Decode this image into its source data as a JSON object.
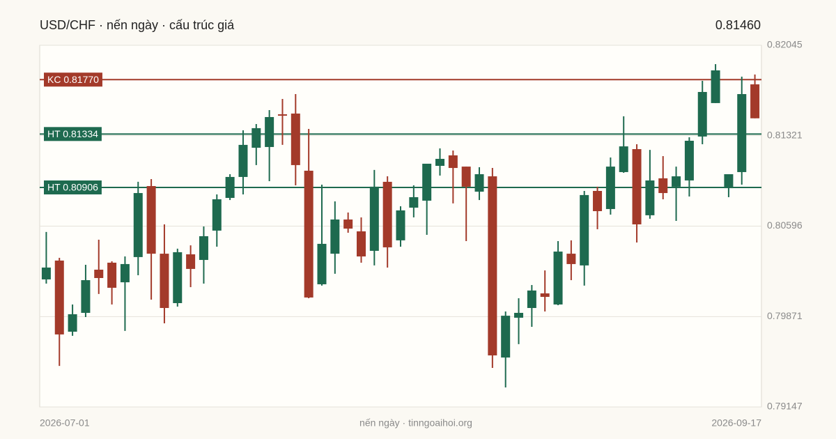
{
  "chart_data": {
    "type": "candlestick",
    "title": "USD/CHF · nến ngày · cấu trúc giá",
    "last_price": {
      "value": 0.8146,
      "label": "0.81460"
    },
    "last_price_color": "#a33a2a",
    "footer": "nến ngày · tinngoaihoi.org",
    "categories": [
      "2026-07-01",
      null,
      null,
      null,
      null,
      null,
      null,
      null,
      null,
      null,
      null,
      null,
      null,
      null,
      null,
      null,
      null,
      null,
      null,
      null,
      null,
      null,
      null,
      null,
      null,
      null,
      null,
      null,
      null,
      null,
      null,
      null,
      null,
      null,
      null,
      null,
      null,
      null,
      null,
      null,
      null,
      null,
      null,
      null,
      null,
      null,
      null,
      null,
      null,
      null,
      null,
      null,
      null,
      null,
      "2026-09-17"
    ],
    "open": [
      0.80169,
      0.8032,
      0.7975,
      0.79901,
      0.80247,
      0.80303,
      0.80146,
      0.80348,
      0.80917,
      0.80375,
      0.79979,
      0.8037,
      0.80325,
      0.8056,
      0.80822,
      0.8099,
      0.81224,
      0.8123,
      0.81492,
      0.81498,
      0.8104,
      0.8013,
      0.80375,
      0.80649,
      0.80554,
      0.80398,
      0.80951,
      0.80482,
      0.80744,
      0.808,
      0.81079,
      0.81163,
      0.81073,
      0.80872,
      0.80995,
      0.79543,
      0.79862,
      0.7994,
      0.80057,
      0.79968,
      0.80375,
      0.80281,
      0.80878,
      0.80733,
      0.81029,
      0.81213,
      0.80683,
      0.80979,
      0.80912,
      0.80962,
      0.81314,
      0.81582,
      0.809,
      0.81029,
      0.81732
    ],
    "high": [
      0.80549,
      0.80342,
      0.79968,
      0.80286,
      0.80487,
      0.80314,
      0.80353,
      0.80951,
      0.80973,
      0.8061,
      0.80415,
      0.80442,
      0.80593,
      0.8085,
      0.81012,
      0.81364,
      0.81414,
      0.81526,
      0.81615,
      0.81654,
      0.81375,
      0.80928,
      0.80794,
      0.80705,
      0.80666,
      0.81046,
      0.80995,
      0.80755,
      0.80923,
      0.81096,
      0.81219,
      0.81202,
      0.81073,
      0.81068,
      0.81062,
      0.79912,
      0.80018,
      0.80124,
      0.80241,
      0.80476,
      0.80482,
      0.80878,
      0.80912,
      0.81146,
      0.81476,
      0.81252,
      0.81207,
      0.81157,
      0.81073,
      0.81308,
      0.8176,
      0.81894,
      0.81012,
      0.81794,
      0.81811
    ],
    "low": [
      0.80135,
      0.79476,
      0.79717,
      0.79867,
      0.80052,
      0.79968,
      0.79756,
      0.80202,
      0.80007,
      0.79817,
      0.79951,
      0.80107,
      0.80135,
      0.80431,
      0.80805,
      0.8085,
      0.81085,
      0.80956,
      0.81247,
      0.80923,
      0.80018,
      0.80119,
      0.80214,
      0.80543,
      0.80303,
      0.80281,
      0.80264,
      0.80431,
      0.80666,
      0.80526,
      0.81001,
      0.80778,
      0.80476,
      0.80805,
      0.7946,
      0.79303,
      0.7965,
      0.79789,
      0.79912,
      0.79962,
      0.80163,
      0.80119,
      0.80571,
      0.80688,
      0.81023,
      0.80465,
      0.80655,
      0.80811,
      0.80638,
      0.80833,
      0.81252,
      0.81582,
      0.80828,
      0.80928,
      0.8146
    ],
    "close": [
      0.80264,
      0.79728,
      0.7989,
      0.80163,
      0.8018,
      0.80102,
      0.80292,
      0.80861,
      0.80375,
      0.7994,
      0.80387,
      0.80253,
      0.80515,
      0.80811,
      0.8099,
      0.81247,
      0.81381,
      0.8147,
      0.81481,
      0.81085,
      0.80024,
      0.80454,
      0.80649,
      0.80576,
      0.80353,
      0.80912,
      0.80426,
      0.80722,
      0.80828,
      0.81096,
      0.81135,
      0.81062,
      0.80912,
      0.81012,
      0.7956,
      0.79878,
      0.79901,
      0.8008,
      0.80029,
      0.80392,
      0.80292,
      0.80845,
      0.80716,
      0.81073,
      0.81235,
      0.8061,
      0.80962,
      0.80861,
      0.80995,
      0.8128,
      0.81671,
      0.81844,
      0.81012,
      0.81654,
      0.8146
    ],
    "up_color": "#1e6a4f",
    "down_color": "#a33a2a",
    "levels": [
      {
        "label": "KC 0.81770",
        "value": 0.8177,
        "color": "#a33a2a"
      },
      {
        "label": "HT 0.81334",
        "value": 0.81334,
        "color": "#1e6a4f"
      },
      {
        "label": "HT 0.80906",
        "value": 0.80906,
        "color": "#1e6a4f"
      }
    ],
    "ylim": [
      0.79147,
      0.82045
    ],
    "yticks": [
      0.79147,
      0.79871,
      0.80596,
      0.81321,
      0.82045
    ],
    "grid": true
  }
}
